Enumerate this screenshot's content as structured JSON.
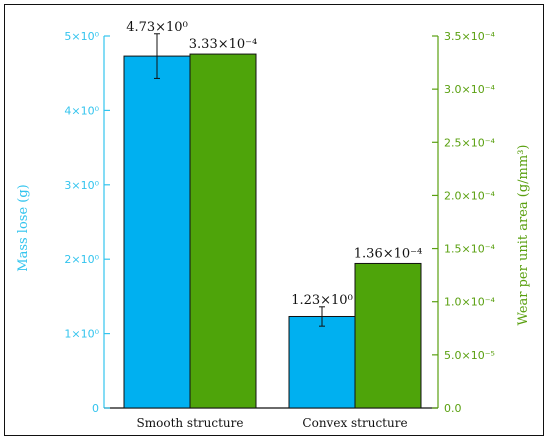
{
  "chart_data": {
    "type": "bar",
    "categories": [
      "Smooth structure",
      "Convex structure"
    ],
    "series": [
      {
        "name": "Mass lose",
        "axis": "left",
        "color": "#00b0f0",
        "values": [
          4.73,
          1.23
        ],
        "error_low": [
          0.3,
          0.13
        ],
        "error_high": [
          0.3,
          0.13
        ],
        "labels": [
          "4.73×10⁰",
          "1.23×10⁰"
        ]
      },
      {
        "name": "Wear per unit area",
        "axis": "right",
        "color": "#4ea40a",
        "values": [
          0.000333,
          0.000136
        ],
        "labels": [
          "3.33×10⁻⁴",
          "1.36×10⁻⁴"
        ]
      }
    ],
    "y_left": {
      "label": "Mass lose (g)",
      "ylim": [
        0,
        5
      ],
      "ticks": [
        0,
        1,
        2,
        3,
        4,
        5
      ],
      "tick_labels": [
        "0",
        "1×10⁰",
        "2×10⁰",
        "3×10⁰",
        "4×10⁰",
        "5×10⁰"
      ],
      "color": "#33c4ee"
    },
    "y_right": {
      "label": "Wear per unit area (g/mm³)",
      "ylim": [
        0,
        0.00035
      ],
      "ticks": [
        0,
        5e-05,
        0.0001,
        0.00015,
        0.0002,
        0.00025,
        0.0003,
        0.00035
      ],
      "tick_labels": [
        "0.0",
        "5.0×10⁻⁵",
        "1.0×10⁻⁴",
        "1.5×10⁻⁴",
        "2.0×10⁻⁴",
        "2.5×10⁻⁴",
        "3.0×10⁻⁴",
        "3.5×10⁻⁴"
      ],
      "color": "#5aa010"
    },
    "grid": false,
    "legend": "none"
  }
}
